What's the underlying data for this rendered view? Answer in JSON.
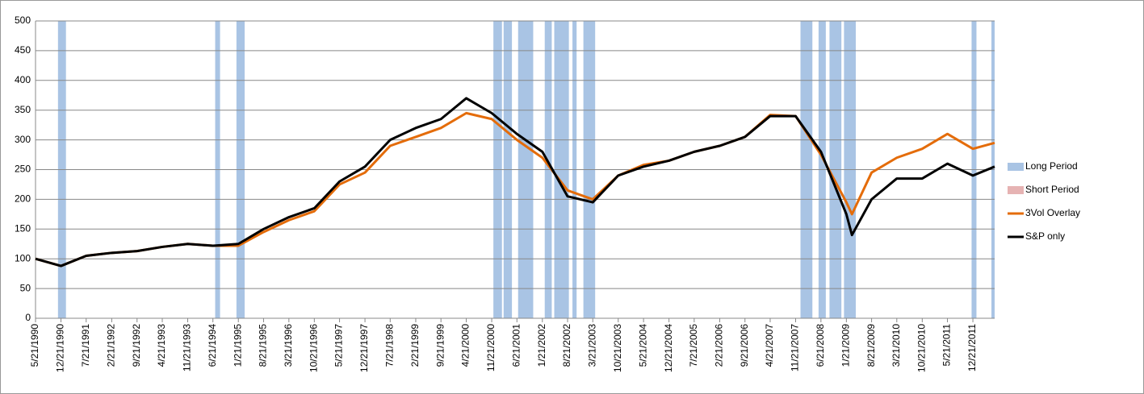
{
  "chart_data": {
    "type": "line",
    "x": [
      "5/21/1990",
      "12/21/1990",
      "7/21/1991",
      "2/21/1992",
      "9/21/1992",
      "4/21/1993",
      "11/21/1993",
      "6/21/1994",
      "1/21/1995",
      "8/21/1995",
      "3/21/1996",
      "10/21/1996",
      "5/21/1997",
      "12/21/1997",
      "7/21/1998",
      "2/21/1999",
      "9/21/1999",
      "4/21/2000",
      "11/21/2000",
      "6/21/2001",
      "1/21/2002",
      "8/21/2002",
      "3/21/2003",
      "10/21/2003",
      "5/21/2004",
      "12/21/2004",
      "7/21/2005",
      "2/21/2006",
      "9/21/2006",
      "4/21/2007",
      "11/21/2007",
      "6/21/2008",
      "1/21/2009",
      "3/9/2009",
      "8/21/2009",
      "3/21/2010",
      "10/21/2010",
      "5/21/2011",
      "12/21/2011",
      "6/21/2012"
    ],
    "series": [
      {
        "name": "3Vol Overlay",
        "color": "#e46c0a",
        "values": [
          100,
          88,
          105,
          110,
          113,
          120,
          125,
          122,
          122,
          145,
          165,
          180,
          225,
          245,
          290,
          305,
          320,
          345,
          335,
          300,
          270,
          215,
          200,
          240,
          258,
          265,
          280,
          290,
          305,
          342,
          340,
          275,
          195,
          175,
          245,
          270,
          285,
          310,
          285,
          295
        ]
      },
      {
        "name": "S&P only",
        "color": "#000000",
        "values": [
          100,
          88,
          105,
          110,
          113,
          120,
          125,
          122,
          125,
          150,
          170,
          185,
          230,
          255,
          300,
          320,
          335,
          370,
          345,
          310,
          280,
          205,
          195,
          240,
          255,
          265,
          280,
          290,
          305,
          340,
          340,
          280,
          175,
          140,
          200,
          235,
          235,
          260,
          240,
          255
        ]
      }
    ],
    "shading": [
      {
        "name": "Long Period",
        "color": "#a9c4e4",
        "periods": [
          [
            "11/26/1990",
            "2/1/1991"
          ],
          [
            "7/10/1994",
            "8/20/1994"
          ],
          [
            "1/5/1995",
            "3/15/1995"
          ],
          [
            "12/5/2000",
            "2/15/2001"
          ],
          [
            "3/1/2001",
            "5/10/2001"
          ],
          [
            "7/1/2001",
            "11/5/2001"
          ],
          [
            "2/10/2002",
            "4/10/2002"
          ],
          [
            "5/1/2002",
            "9/1/2002"
          ],
          [
            "10/1/2002",
            "11/5/2002"
          ],
          [
            "1/1/2003",
            "4/10/2003"
          ],
          [
            "1/1/2008",
            "4/10/2008"
          ],
          [
            "6/1/2008",
            "8/1/2008"
          ],
          [
            "9/1/2008",
            "12/10/2008"
          ],
          [
            "1/1/2009",
            "4/10/2009"
          ],
          [
            "12/10/2011",
            "1/20/2012"
          ],
          [
            "5/25/2012",
            "6/21/2012"
          ]
        ]
      },
      {
        "name": "Short Period",
        "color": "#e6b3b3",
        "periods": []
      }
    ],
    "xlim": [
      "5/21/1990",
      "6/21/2012"
    ],
    "xticks": [
      "5/21/1990",
      "12/21/1990",
      "7/21/1991",
      "2/21/1992",
      "9/21/1992",
      "4/21/1993",
      "11/21/1993",
      "6/21/1994",
      "1/21/1995",
      "8/21/1995",
      "3/21/1996",
      "10/21/1996",
      "5/21/1997",
      "12/21/1997",
      "7/21/1998",
      "2/21/1999",
      "9/21/1999",
      "4/21/2000",
      "11/21/2000",
      "6/21/2001",
      "1/21/2002",
      "8/21/2002",
      "3/21/2003",
      "10/21/2003",
      "5/21/2004",
      "12/21/2004",
      "7/21/2005",
      "2/21/2006",
      "9/21/2006",
      "4/21/2007",
      "11/21/2007",
      "6/21/2008",
      "1/21/2009",
      "8/21/2009",
      "3/21/2010",
      "10/21/2010",
      "5/21/2011",
      "12/21/2011"
    ],
    "ylim": [
      0,
      500
    ],
    "yticks": [
      0,
      50,
      100,
      150,
      200,
      250,
      300,
      350,
      400,
      450,
      500
    ],
    "grid": true,
    "legend": "right"
  }
}
